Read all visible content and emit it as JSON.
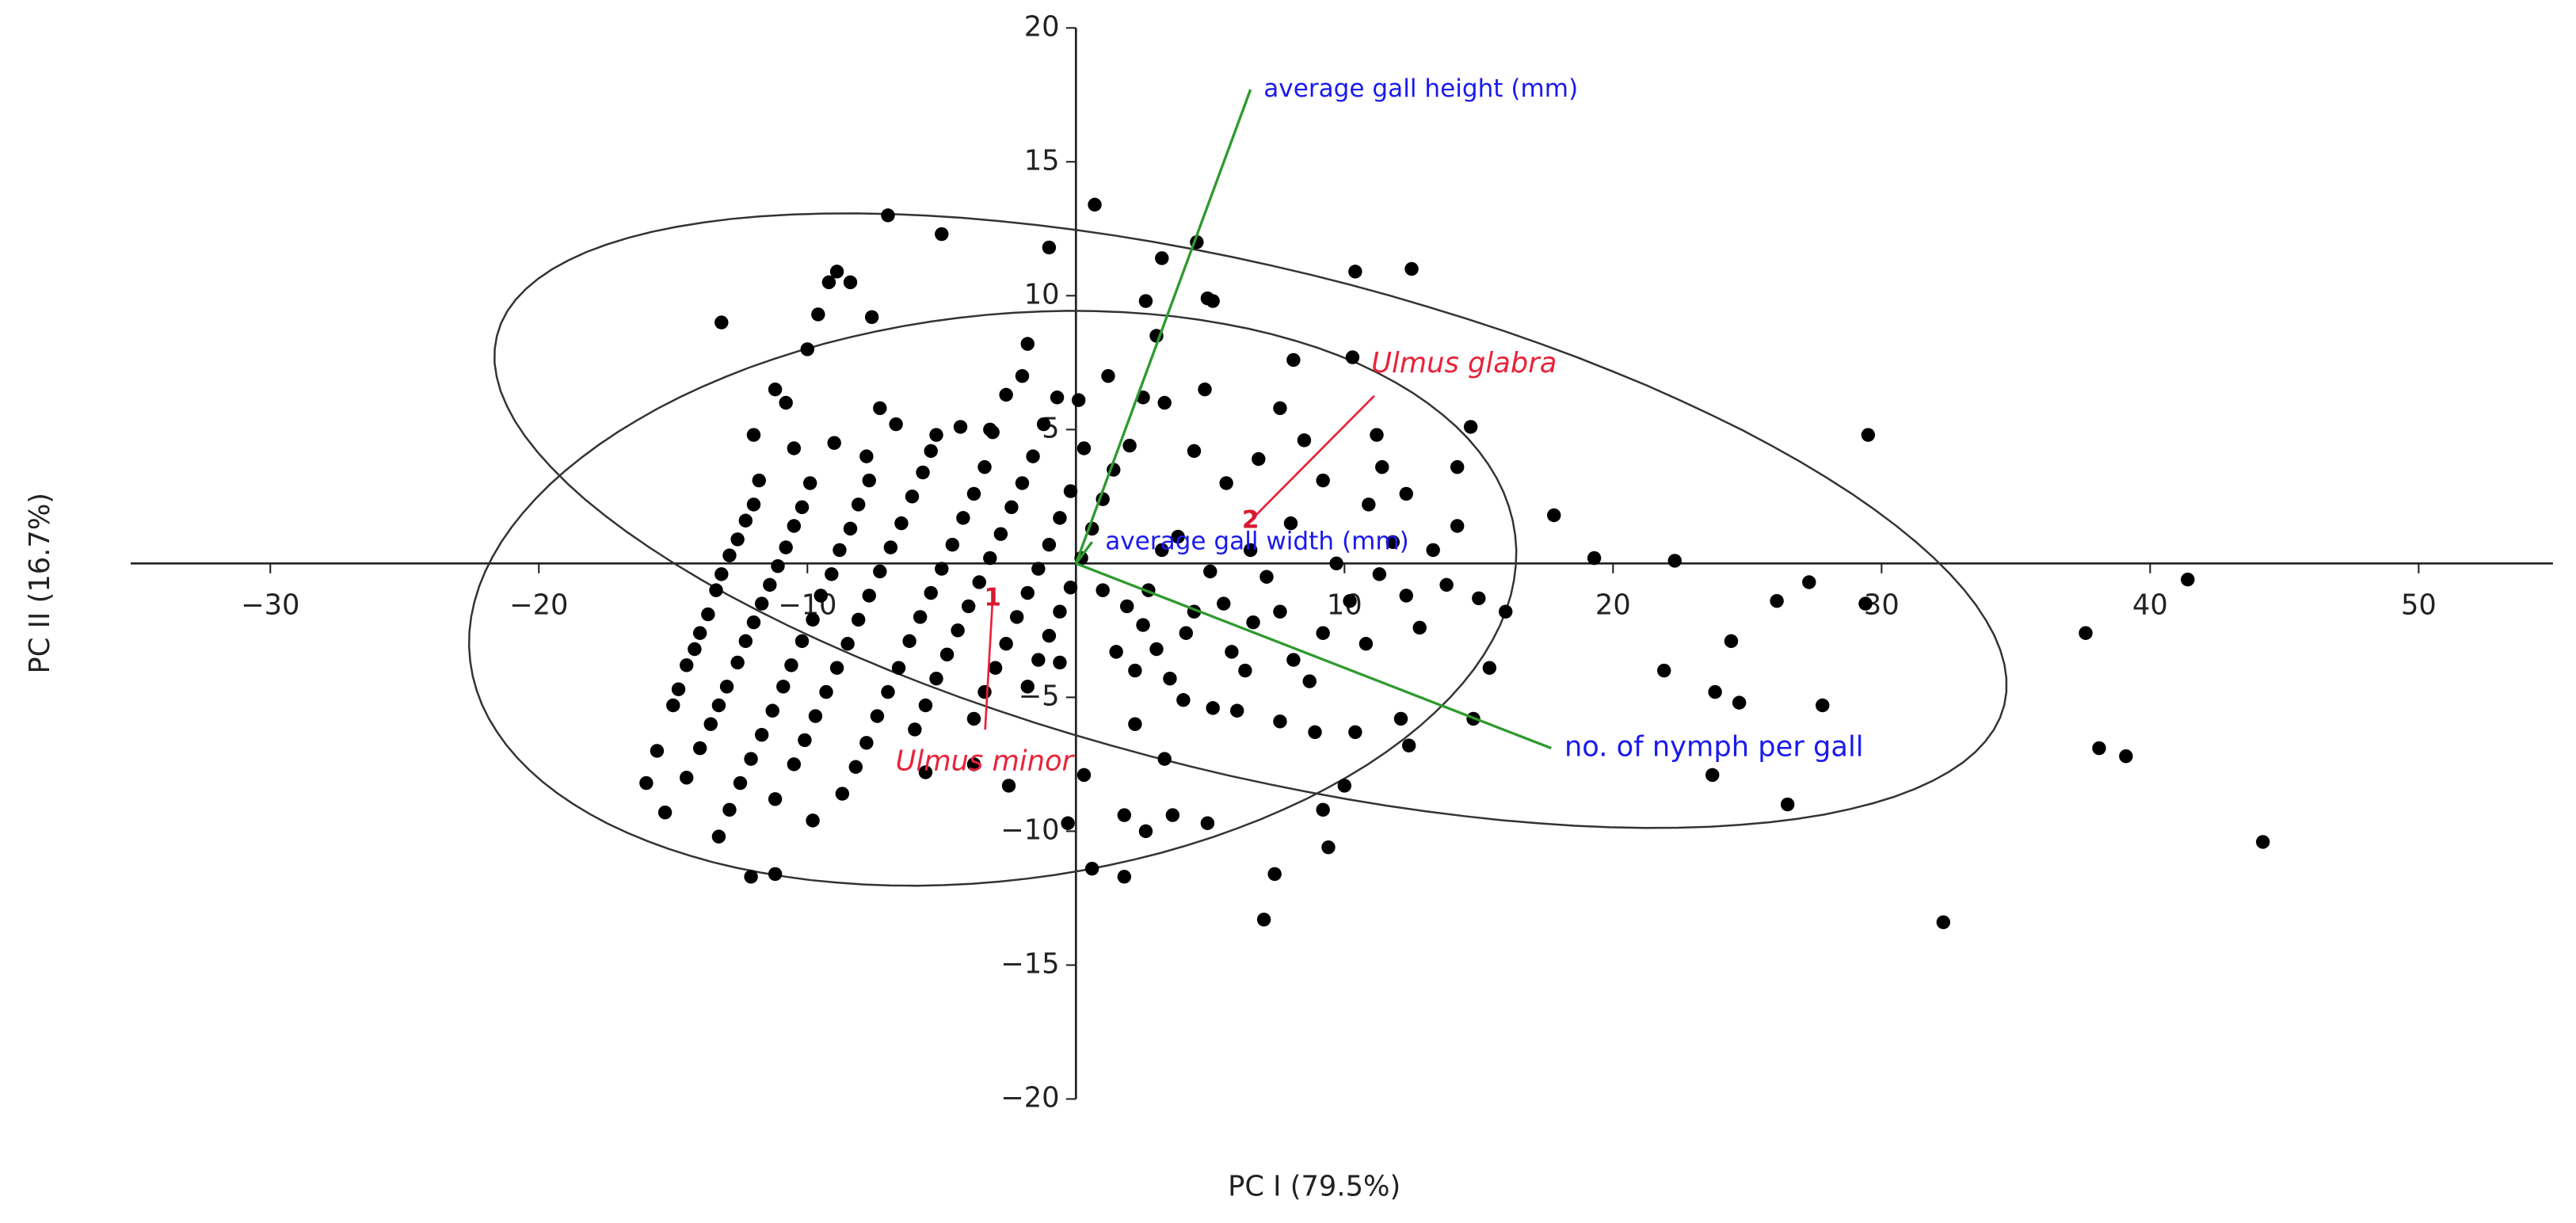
{
  "chart_data": {
    "type": "scatter",
    "x_label": "PC I (79.5%)",
    "y_label": "PC II (16.7%)",
    "xlim": [
      -35.2,
      55
    ],
    "ylim": [
      -20,
      20
    ],
    "xticks": [
      {
        "value": -30,
        "label": "−30"
      },
      {
        "value": -20,
        "label": "−20"
      },
      {
        "value": -10,
        "label": "−10"
      },
      10,
      20,
      30,
      40,
      50
    ],
    "yticks": [
      20,
      15,
      10,
      5,
      {
        "value": -5,
        "label": "−5"
      },
      {
        "value": -10,
        "label": "−10"
      },
      {
        "value": -15,
        "label": "−15"
      },
      {
        "value": -20,
        "label": "−20"
      }
    ],
    "grid": false,
    "color": "#000000",
    "x": [
      29.5,
      41.4,
      44.2,
      37.6,
      38.1,
      39.1,
      32.3,
      29.4,
      27.3,
      26.1,
      27.8,
      24.4,
      23.8,
      24.7,
      23.7,
      26.5,
      21.9,
      22.3,
      19.3,
      17.8,
      16.0,
      15.4,
      14.8,
      14.2,
      14.7,
      12.5,
      10.4,
      10.3,
      8.1,
      0.7,
      -7.0,
      -5.0,
      -1.0,
      3.2,
      4.5,
      4.9,
      2.6,
      9.4,
      9.2,
      7.4,
      7.0,
      -12.1,
      -16.0,
      -15.6,
      -15.0,
      -14.8,
      -14.5,
      -14.2,
      -14.0,
      -13.7,
      -13.4,
      -13.2,
      -12.9,
      -12.6,
      -12.3,
      -12.0,
      -11.8,
      -15.3,
      -14.5,
      -14.0,
      -13.6,
      -13.3,
      -13.0,
      -12.6,
      -12.3,
      -12.0,
      -11.7,
      -11.4,
      -11.1,
      -10.8,
      -10.5,
      -10.2,
      -9.9,
      -13.3,
      -12.9,
      -12.5,
      -12.1,
      -11.7,
      -11.3,
      -10.9,
      -10.6,
      -10.2,
      -9.8,
      -9.5,
      -9.1,
      -8.8,
      -8.4,
      -8.1,
      -7.7,
      -11.2,
      -10.5,
      -10.1,
      -9.7,
      -9.3,
      -8.9,
      -8.5,
      -8.1,
      -7.7,
      -7.3,
      -6.9,
      -6.5,
      -6.1,
      -5.7,
      -5.2,
      -9.8,
      -8.7,
      -8.2,
      -7.8,
      -7.4,
      -7.0,
      -6.6,
      -6.2,
      -5.8,
      -5.4,
      -5.0,
      -4.6,
      -4.2,
      -3.8,
      -3.4,
      -3.1,
      -6.0,
      -5.6,
      -5.2,
      -4.8,
      -4.4,
      -4.0,
      -3.6,
      -3.2,
      -2.8,
      -2.4,
      -2.0,
      -1.6,
      -1.2,
      -3.8,
      -3.4,
      -3.0,
      -2.6,
      -2.2,
      -1.8,
      -1.4,
      -1.0,
      -0.6,
      -0.2,
      0.3,
      0.1,
      -1.8,
      -1.4,
      -1.0,
      -0.6,
      -0.2,
      0.2,
      0.6,
      1.0,
      1.4,
      2.0,
      -13.2,
      -10.0,
      -9.6,
      -9.2,
      -8.9,
      -8.4,
      -7.6,
      -7.3,
      -9.0,
      -10.8,
      -11.2,
      -12.0,
      -10.5,
      -6.7,
      -4.3,
      -3.2,
      -2.6,
      -2.0,
      -1.8,
      -0.7,
      -5.4,
      -7.8,
      1.9,
      2.5,
      3.0,
      3.5,
      4.0,
      1.0,
      1.5,
      2.2,
      2.7,
      3.2,
      3.8,
      4.4,
      5.0,
      5.5,
      5.8,
      6.3,
      6.6,
      7.1,
      7.6,
      8.1,
      8.7,
      9.2,
      9.7,
      10.2,
      10.8,
      11.3,
      11.8,
      12.3,
      12.8,
      13.3,
      13.8,
      14.2,
      10.9,
      11.4,
      9.2,
      8.5,
      7.6,
      6.8,
      5.6,
      4.4,
      3.3,
      3.0,
      4.8,
      5.1,
      1.2,
      2.5,
      6.0,
      7.6,
      8.9,
      10.4,
      12.1,
      12.4,
      2.2,
      3.3,
      0.3,
      1.8,
      2.6,
      3.6,
      4.9,
      -0.3,
      0.6,
      1.8,
      -3.8,
      -5.6,
      -2.5,
      11.2,
      12.3,
      8.0,
      6.5,
      10.0,
      -11.2,
      -0.6,
      4.1,
      5.1,
      15.0
    ],
    "values": [
      4.8,
      -0.6,
      -10.4,
      -2.6,
      -6.9,
      -7.2,
      -13.4,
      -1.5,
      -0.7,
      -1.4,
      -5.3,
      -2.9,
      -4.8,
      -5.2,
      -7.9,
      -9.0,
      -4.0,
      0.1,
      0.2,
      1.8,
      -1.8,
      -3.9,
      -5.8,
      3.6,
      5.1,
      11.0,
      10.9,
      7.7,
      7.6,
      13.4,
      13.0,
      12.3,
      11.8,
      11.4,
      12.0,
      9.9,
      9.8,
      -10.6,
      -9.2,
      -11.6,
      -13.3,
      -11.7,
      -8.2,
      -7.0,
      -5.3,
      -4.7,
      -3.8,
      -3.2,
      -2.6,
      -1.9,
      -1.0,
      -0.4,
      0.3,
      0.9,
      1.6,
      2.2,
      3.1,
      -9.3,
      -8.0,
      -6.9,
      -6.0,
      -5.3,
      -4.6,
      -3.7,
      -2.9,
      -2.2,
      -1.5,
      -0.8,
      -0.1,
      0.6,
      1.4,
      2.1,
      3.0,
      -10.2,
      -9.2,
      -8.2,
      -7.3,
      -6.4,
      -5.5,
      -4.6,
      -3.8,
      -2.9,
      -2.1,
      -1.2,
      -0.4,
      0.5,
      1.3,
      2.2,
      3.1,
      -8.8,
      -7.5,
      -6.6,
      -5.7,
      -4.8,
      -3.9,
      -3.0,
      -2.1,
      -1.2,
      -0.3,
      0.6,
      1.5,
      2.5,
      3.4,
      4.8,
      -9.6,
      -8.6,
      -7.6,
      -6.7,
      -5.7,
      -4.8,
      -3.9,
      -2.9,
      -2.0,
      -1.1,
      -0.2,
      0.7,
      1.7,
      2.6,
      3.6,
      4.9,
      -6.2,
      -5.3,
      -4.3,
      -3.4,
      -2.5,
      -1.6,
      -0.7,
      0.2,
      1.1,
      2.1,
      3.0,
      4.0,
      5.2,
      -5.8,
      -4.8,
      -3.9,
      -3.0,
      -2.0,
      -1.1,
      -0.2,
      0.7,
      1.7,
      2.7,
      4.3,
      6.1,
      -4.6,
      -3.6,
      -2.7,
      -1.8,
      -0.9,
      0.2,
      1.3,
      2.4,
      3.5,
      4.4,
      9.0,
      8.0,
      9.3,
      10.5,
      10.9,
      10.5,
      9.2,
      5.8,
      4.5,
      6.0,
      6.5,
      4.8,
      4.3,
      5.2,
      5.1,
      5.0,
      6.3,
      7.0,
      8.2,
      6.2,
      4.2,
      4.0,
      -1.6,
      -2.3,
      -3.2,
      -4.3,
      -5.1,
      -1.0,
      -3.3,
      -4.0,
      -1.0,
      0.5,
      1.0,
      -1.8,
      -0.3,
      -1.5,
      -3.3,
      -4.0,
      -2.2,
      -0.5,
      -1.8,
      -3.6,
      -4.4,
      -2.6,
      0.0,
      -1.4,
      -3.0,
      -0.4,
      0.8,
      -1.2,
      -2.4,
      0.5,
      -0.8,
      1.4,
      2.2,
      3.6,
      3.1,
      4.6,
      5.8,
      3.9,
      3.0,
      4.2,
      6.0,
      8.5,
      6.5,
      9.8,
      7.0,
      6.2,
      -5.5,
      -5.9,
      -6.3,
      -6.3,
      -5.8,
      -6.8,
      -6.0,
      -7.3,
      -7.9,
      -9.4,
      -10.0,
      -9.4,
      -9.7,
      -9.7,
      -11.4,
      -11.7,
      -7.5,
      -7.8,
      -8.3,
      4.8,
      2.6,
      1.5,
      0.5,
      -8.3,
      -11.6,
      -3.7,
      -2.6,
      -5.4,
      -1.3
    ],
    "loadings": [
      {
        "label": "average gall height (mm)",
        "x": 6.5,
        "y": 17.7
      },
      {
        "label": "average gall width (mm)",
        "x": 0.6,
        "y": 0.8
      },
      {
        "label": "no. of nymph per gall",
        "x": 17.7,
        "y": -6.9
      }
    ],
    "groups": [
      {
        "id": "1",
        "name": "Ulmus minor",
        "center_x": -3.1,
        "center_y": -1.3,
        "semi_major": 19.6,
        "semi_minor": 10.55,
        "angle": 6.9
      },
      {
        "id": "2",
        "name": "Ulmus glabra",
        "center_x": 6.5,
        "center_y": 1.6,
        "semi_major": 28.9,
        "semi_minor": 9.45,
        "angle": -13.8
      }
    ]
  }
}
